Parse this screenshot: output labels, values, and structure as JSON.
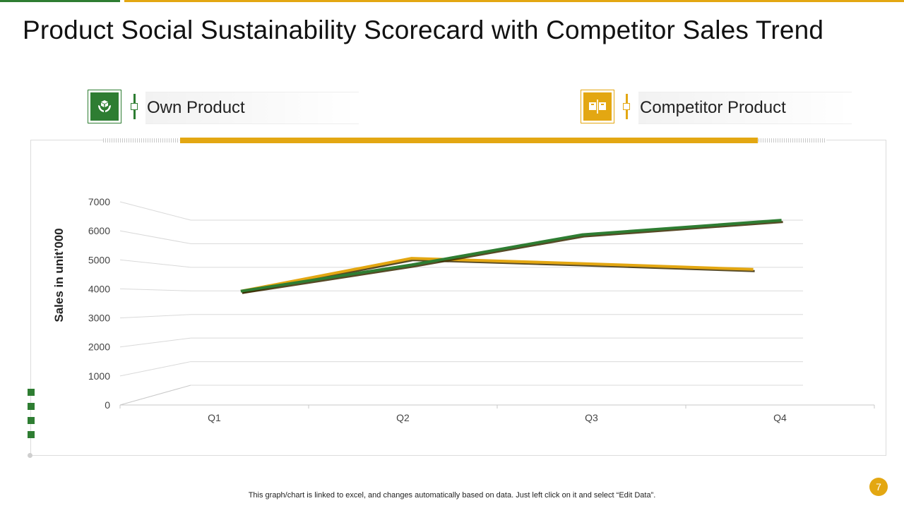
{
  "slide": {
    "title": "Product Social Sustainability Scorecard with Competitor Sales Trend",
    "footer_note": "This graph/chart is linked to excel,  and changes automatically based on data. Just left click on it and select “Edit Data”.",
    "page_number": "7"
  },
  "legend": {
    "own": {
      "label": "Own Product",
      "icon": "hands-box-icon",
      "color": "#2e7d32"
    },
    "competitor": {
      "label": "Competitor Product",
      "icon": "boxes-icon",
      "color": "#e3a712"
    }
  },
  "colors": {
    "green": "#2e7d32",
    "gold": "#e3a712",
    "grid": "#d9d9d9"
  },
  "chart_data": {
    "type": "line",
    "title": "",
    "xlabel": "",
    "ylabel": "Sales in unit’000",
    "categories": [
      "Q1",
      "Q2",
      "Q3",
      "Q4"
    ],
    "ylim": [
      0,
      7000
    ],
    "yticks": [
      "0",
      "1000",
      "2000",
      "3000",
      "4000",
      "5000",
      "6000",
      "7000"
    ],
    "grid": true,
    "series": [
      {
        "name": "Competitor Product",
        "color": "#e3a712",
        "values": [
          3950,
          5200,
          5000,
          4780
        ]
      },
      {
        "name": "Own Product",
        "color": "#2e7d32",
        "values": [
          3950,
          4950,
          6100,
          6650
        ]
      }
    ]
  }
}
